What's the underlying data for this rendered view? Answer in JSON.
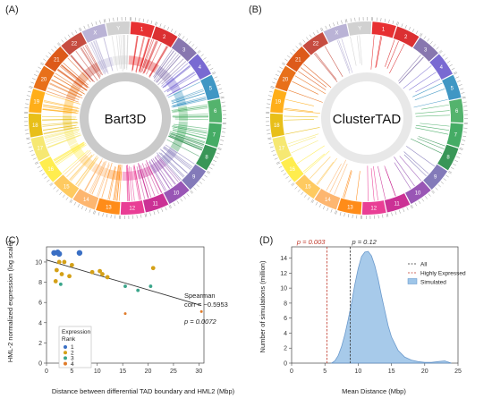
{
  "panels": {
    "a": {
      "label": "(A)",
      "center_text": "Bart3D"
    },
    "b": {
      "label": "(B)",
      "center_text": "ClusterTAD"
    },
    "c": {
      "label": "(C)"
    },
    "d": {
      "label": "(D)"
    }
  },
  "chromosomes": [
    "1",
    "2",
    "3",
    "4",
    "5",
    "6",
    "7",
    "8",
    "9",
    "10",
    "11",
    "12",
    "13",
    "14",
    "15",
    "16",
    "17",
    "18",
    "19",
    "20",
    "21",
    "22",
    "X",
    "Y"
  ],
  "chromosome_colors": [
    "#e41a1c",
    "#d7191c",
    "#7b68a6",
    "#6a5acd",
    "#2b8cbe",
    "#41ab5d",
    "#31a354",
    "#238b45",
    "#756bb1",
    "#8e44ad",
    "#c51b8a",
    "#e7298a",
    "#ff7f00",
    "#fdae61",
    "#fec44f",
    "#ffeb3b",
    "#f5e663",
    "#e6b800",
    "#ffa500",
    "#e66101",
    "#d94801",
    "#c0392b",
    "#b2abd2",
    "#cccccc"
  ],
  "chart_data": [
    {
      "type": "scatter",
      "xlabel": "Distance between differential TAD boundary and HML2 (Mbp)",
      "ylabel": "HML-2 normalized expression (log scale)",
      "xlim": [
        0,
        31
      ],
      "ylim": [
        0,
        11.5
      ],
      "xticks": [
        0,
        5,
        10,
        15,
        20,
        25,
        30
      ],
      "yticks": [
        0,
        2,
        4,
        6,
        8,
        10
      ],
      "legend": {
        "title_line1": "Expression",
        "title_line2": "Rank",
        "position": "bottom-left"
      },
      "series": [
        {
          "name": "1",
          "color": "#3a6fc4",
          "points": [
            [
              1.5,
              10.9
            ],
            [
              2.2,
              10.95
            ],
            [
              6.5,
              10.9
            ],
            [
              2.5,
              10.8
            ]
          ]
        },
        {
          "name": "2",
          "color": "#d4a017",
          "points": [
            [
              2.5,
              10.0
            ],
            [
              3.5,
              10.0
            ],
            [
              5,
              9.7
            ],
            [
              2,
              9.2
            ],
            [
              3,
              8.8
            ],
            [
              1.8,
              8.1
            ],
            [
              9,
              9.0
            ],
            [
              10.5,
              9.1
            ],
            [
              11,
              8.8
            ],
            [
              12,
              8.5
            ],
            [
              21,
              9.4
            ],
            [
              4.5,
              8.6
            ]
          ]
        },
        {
          "name": "3",
          "color": "#3aa58a",
          "points": [
            [
              2.8,
              7.8
            ],
            [
              15.5,
              7.6
            ],
            [
              18,
              7.2
            ],
            [
              20.5,
              7.6
            ]
          ]
        },
        {
          "name": "4",
          "color": "#e07b2a",
          "points": [
            [
              15.5,
              4.9
            ],
            [
              30.5,
              5.1
            ]
          ]
        }
      ],
      "trendline": {
        "x": [
          0,
          30.5
        ],
        "y": [
          10.2,
          5.7
        ]
      },
      "annotations": [
        "Spearman",
        "corr = −0.5953",
        "p = 0.0072"
      ]
    },
    {
      "type": "area",
      "xlabel": "Mean Distance (Mbp)",
      "ylabel": "Number of simulations (million)",
      "xlim": [
        0,
        25
      ],
      "ylim": [
        0,
        15.5
      ],
      "xticks": [
        0,
        5,
        10,
        15,
        20,
        25
      ],
      "yticks": [
        0,
        2,
        4,
        6,
        8,
        10,
        12,
        14
      ],
      "series": [
        {
          "name": "Simulated",
          "color": "#9ec5e8",
          "x": [
            6.0,
            6.5,
            7.0,
            7.5,
            8.0,
            8.5,
            9.0,
            9.5,
            10.0,
            10.5,
            11.0,
            11.5,
            12.0,
            12.5,
            13.0,
            13.5,
            14.0,
            14.5,
            15.0,
            16.0,
            17.0,
            18.0,
            19.0,
            20.0,
            21.0,
            22.0,
            23.0,
            24.0
          ],
          "y": [
            0.0,
            0.3,
            1.0,
            2.2,
            3.8,
            5.8,
            8.0,
            10.5,
            12.6,
            14.2,
            14.8,
            14.9,
            14.3,
            13.0,
            11.2,
            9.0,
            7.0,
            5.0,
            3.5,
            1.7,
            0.8,
            0.4,
            0.2,
            0.1,
            0.1,
            0.2,
            0.3,
            0.0
          ]
        }
      ],
      "vlines": [
        {
          "name": "All",
          "x": 8.8,
          "color": "#333333",
          "label": "p = 0.12"
        },
        {
          "name": "Highly Expressed",
          "x": 5.3,
          "color": "#c0392b",
          "label": "p = 0.003"
        }
      ],
      "legend": {
        "position": "top-right"
      }
    }
  ]
}
